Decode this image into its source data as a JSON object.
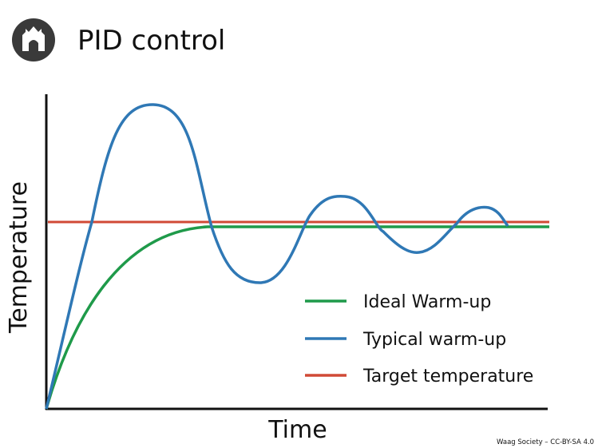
{
  "header": {
    "title": "PID control"
  },
  "axes": {
    "y_label": "Temperature",
    "x_label": "Time"
  },
  "legend": [
    "Ideal Warm-up",
    "Typical warm-up",
    "Target temperature"
  ],
  "credit": "Waag Society – CC-BY-SA 4.0"
}
